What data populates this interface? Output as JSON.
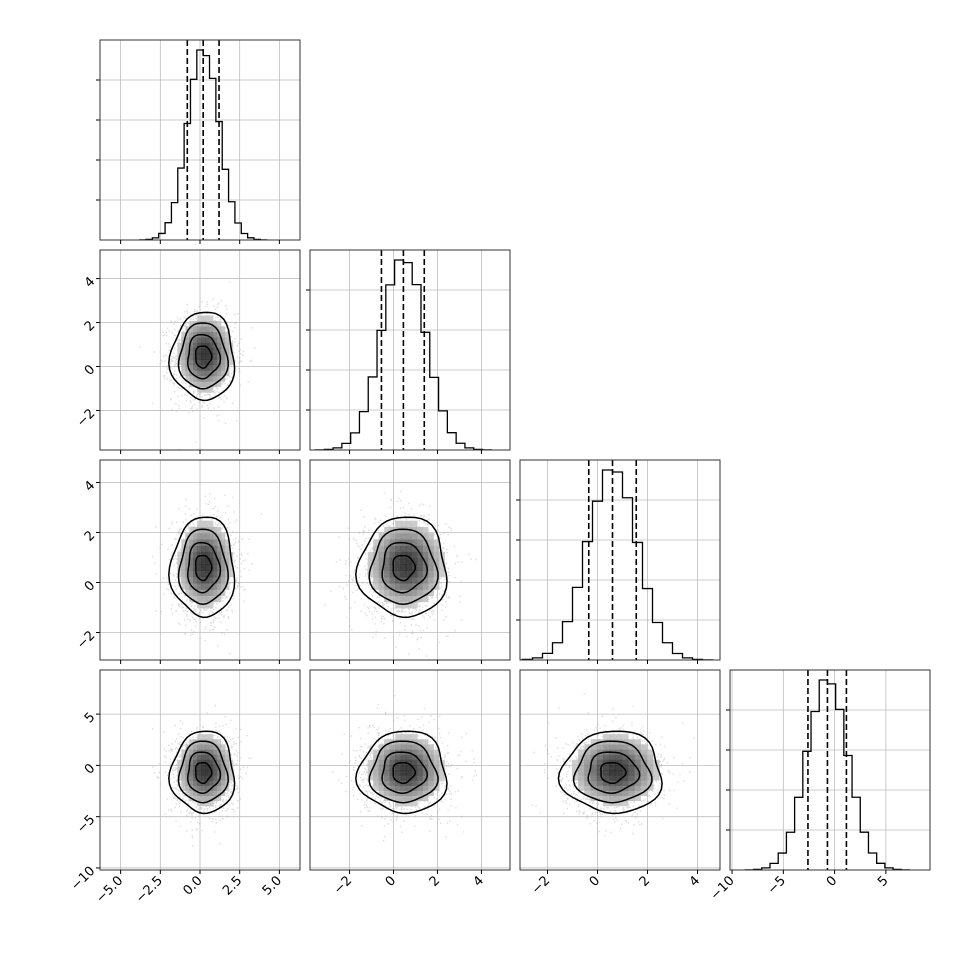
{
  "chart_data": {
    "type": "corner",
    "parameters": [
      {
        "range": [
          -6.3,
          6.3
        ],
        "ticks": [
          -5.0,
          -2.5,
          0.0,
          2.5,
          5.0
        ],
        "tick_labels": [
          "−5.0",
          "−2.5",
          "0.0",
          "2.5",
          "5.0"
        ],
        "mean": 0.2,
        "std": 1.0,
        "quantiles": [
          -0.8,
          0.2,
          1.2
        ],
        "hist_max": 0.95
      },
      {
        "range": [
          -3.8,
          5.3
        ],
        "ticks": [
          -2,
          0,
          2,
          4
        ],
        "tick_labels": [
          "−2",
          "0",
          "2",
          "4"
        ],
        "mean": 0.45,
        "std": 1.0,
        "quantiles": [
          -0.55,
          0.45,
          1.4
        ],
        "hist_max": 0.95
      },
      {
        "range": [
          -3.1,
          4.9
        ],
        "ticks": [
          -2,
          0,
          2,
          4
        ],
        "tick_labels": [
          "−2",
          "0",
          "2",
          "4"
        ],
        "mean": 0.6,
        "std": 1.0,
        "quantiles": [
          -0.35,
          0.6,
          1.55
        ],
        "hist_max": 0.95
      },
      {
        "range": [
          -10.2,
          9.3
        ],
        "ticks": [
          -10,
          -5,
          0,
          5
        ],
        "tick_labels": [
          "−10",
          "−5",
          "0",
          "5"
        ],
        "mean": -0.7,
        "std": 2.0,
        "quantiles": [
          -2.6,
          -0.7,
          1.15
        ],
        "hist_max": 0.95
      }
    ],
    "hist_bins": 20,
    "contour_levels_sigma": [
      0.5,
      1.0,
      1.5,
      2.0
    ],
    "scatter_points_per_panel": 1500,
    "grid": true,
    "colors": {
      "hist": "#000000",
      "contour": "#000000",
      "points": "#9a9a9a",
      "density_max": "#1a1a1a",
      "grid": "#bdbdbd"
    }
  }
}
